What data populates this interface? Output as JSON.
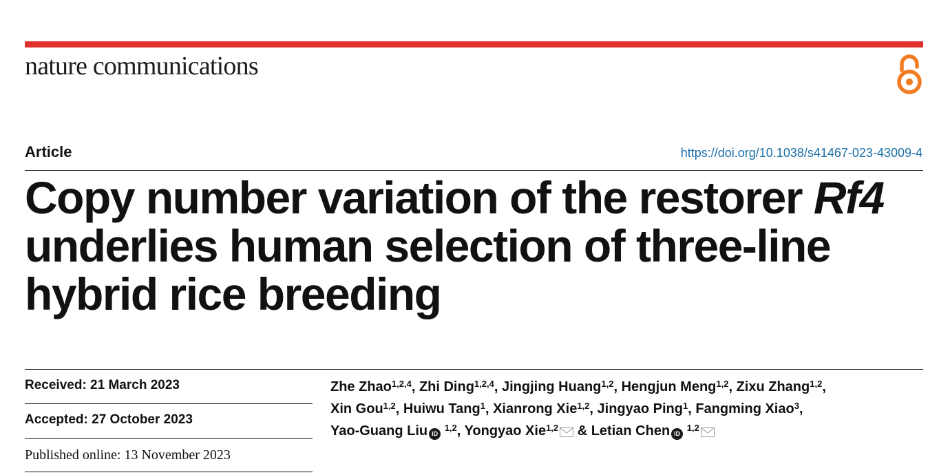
{
  "journal": {
    "name": "nature communications",
    "accent_color": "#e0322c",
    "open_access_icon": "open-access-icon"
  },
  "article": {
    "type": "Article",
    "doi": "https://doi.org/10.1038/s41467-023-43009-4",
    "title": {
      "line1_pre": "Copy number variation of the restorer ",
      "gene": "Rf4",
      "line2": "underlies human selection of three-line",
      "line3": "hybrid rice breeding"
    }
  },
  "history": {
    "received": "Received: 21 March 2023",
    "accepted": "Accepted: 27 October 2023",
    "published": "Published online: 13 November 2023"
  },
  "authors": [
    {
      "name": "Zhe Zhao",
      "aff": "1,2,4",
      "sep": ", "
    },
    {
      "name": "Zhi Ding",
      "aff": "1,2,4",
      "sep": ", "
    },
    {
      "name": "Jingjing Huang",
      "aff": "1,2",
      "sep": ", "
    },
    {
      "name": "Hengjun Meng",
      "aff": "1,2",
      "sep": ", "
    },
    {
      "name": "Zixu Zhang",
      "aff": "1,2",
      "sep": ","
    },
    {
      "name": "Xin Gou",
      "aff": "1,2",
      "sep": ", "
    },
    {
      "name": "Huiwu Tang",
      "aff": "1",
      "sep": ", "
    },
    {
      "name": "Xianrong Xie",
      "aff": "1,2",
      "sep": ", "
    },
    {
      "name": "Jingyao Ping",
      "aff": "1",
      "sep": ", "
    },
    {
      "name": "Fangming Xiao",
      "aff": "3",
      "sep": ","
    },
    {
      "name": "Yao-Guang Liu",
      "aff": "1,2",
      "sep": ", "
    },
    {
      "name": "Yongyao Xie",
      "aff": "1,2",
      "sep": " & "
    },
    {
      "name": "Letian Chen",
      "aff": "1,2",
      "sep": ""
    }
  ]
}
